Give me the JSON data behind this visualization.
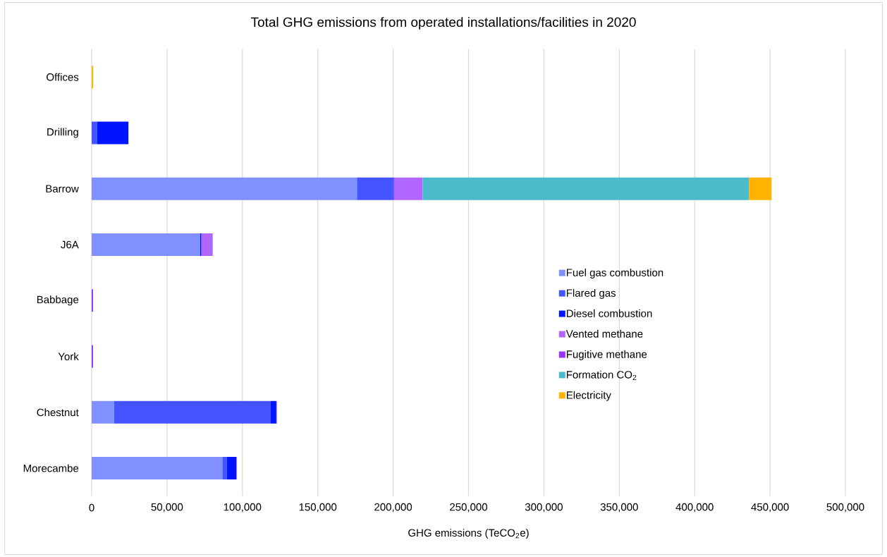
{
  "chart_data": {
    "type": "bar",
    "orientation": "horizontal",
    "stacked": true,
    "title": "Total GHG emissions from operated installations/facilities in 2020",
    "xlabel": "GHG emissions (TeCO$_{2}$e)",
    "categories": [
      "Offices",
      "Drilling",
      "Barrow",
      "J6A",
      "Babbage",
      "York",
      "Chestnut",
      "Morecambe"
    ],
    "series": [
      {
        "name": "Fuel gas combustion",
        "color": "#8090ff",
        "values": [
          null,
          null,
          176000,
          72000,
          null,
          null,
          14800,
          86700
        ]
      },
      {
        "name": "Flared gas",
        "color": "#4455ff",
        "values": [
          null,
          3700,
          24000,
          null,
          null,
          null,
          104000,
          3000
        ]
      },
      {
        "name": "Diesel combustion",
        "color": "#0014ff",
        "values": [
          null,
          20700,
          500,
          800,
          null,
          null,
          3700,
          6300
        ]
      },
      {
        "name": "Vented methane",
        "color": "#b066ff",
        "values": [
          null,
          null,
          19000,
          7500,
          null,
          null,
          400,
          400
        ]
      },
      {
        "name": "Fugitive methane",
        "color": "#9933ff",
        "values": [
          null,
          null,
          null,
          null,
          900,
          900,
          null,
          null
        ]
      },
      {
        "name": "Formation CO$_{2}$",
        "color": "#4bbbcb",
        "values": [
          null,
          null,
          216500,
          null,
          null,
          null,
          null,
          null
        ]
      },
      {
        "name": "Electricity",
        "color": "#ffb300",
        "values": [
          1000,
          null,
          15000,
          null,
          null,
          null,
          null,
          null
        ]
      }
    ],
    "xlim": [
      0,
      500000
    ],
    "xticks": [
      0,
      {
        "value": 50000,
        "label": "50,000"
      },
      {
        "value": 100000,
        "label": "100,000"
      },
      {
        "value": 150000,
        "label": "150,000"
      },
      {
        "value": 200000,
        "label": "200,000"
      },
      {
        "value": 250000,
        "label": "250,000"
      },
      {
        "value": 300000,
        "label": "300,000"
      },
      {
        "value": 350000,
        "label": "350,000"
      },
      {
        "value": 400000,
        "label": "400,000"
      },
      {
        "value": 450000,
        "label": "450,000"
      },
      {
        "value": 500000,
        "label": "500,000"
      }
    ],
    "grid": "x",
    "legend": "right"
  }
}
